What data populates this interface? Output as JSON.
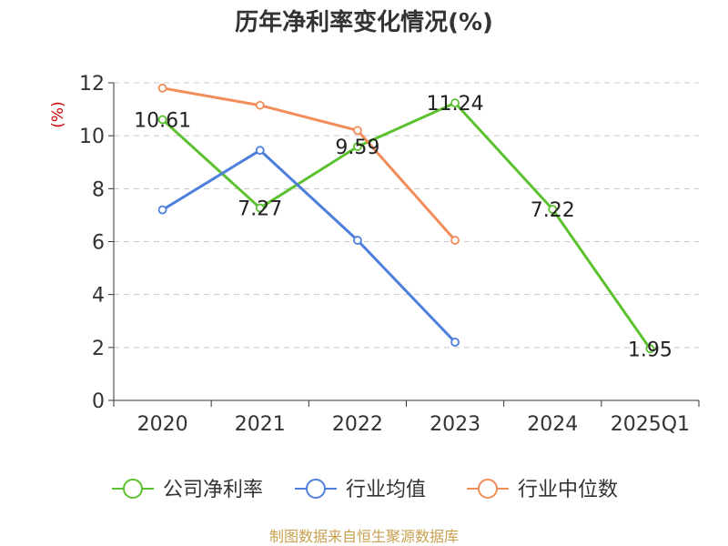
{
  "chart_data": {
    "type": "line",
    "title": "历年净利率变化情况(%)",
    "ylabel": "(%)",
    "ylim": [
      0,
      12
    ],
    "yticks": [
      0,
      2,
      4,
      6,
      8,
      10,
      12
    ],
    "categories": [
      "2020",
      "2021",
      "2022",
      "2023",
      "2024",
      "2025Q1"
    ],
    "grid": true,
    "legend_position": "bottom",
    "series": [
      {
        "name": "公司净利率",
        "color": "#5cc12f",
        "show_labels": true,
        "values": [
          10.61,
          7.27,
          9.59,
          11.24,
          7.22,
          1.95
        ],
        "labels": [
          "10.61",
          "7.27",
          "9.59",
          "11.24",
          "7.22",
          "1.95"
        ]
      },
      {
        "name": "行业均值",
        "color": "#4e7fdc",
        "show_labels": false,
        "values": [
          7.2,
          9.45,
          6.05,
          2.2,
          null,
          null
        ]
      },
      {
        "name": "行业中位数",
        "color": "#f28c5a",
        "show_labels": false,
        "values": [
          11.8,
          11.15,
          10.2,
          6.05,
          null,
          null
        ]
      }
    ]
  },
  "source": "制图数据来自恒生聚源数据库"
}
